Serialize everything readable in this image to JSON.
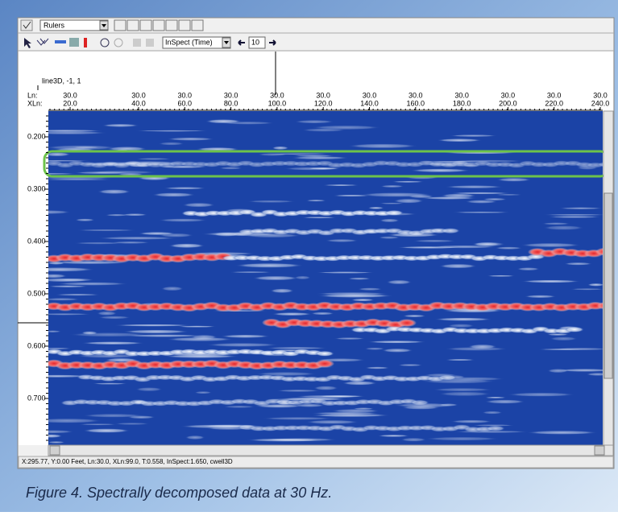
{
  "toolbar": {
    "layer_dropdown": "Rulers",
    "mode_dropdown": "InSpect (Time)",
    "step_value": "10"
  },
  "ruler": {
    "line_label": "line3D, -1, 1",
    "ln_label": "Ln:",
    "xln_label": "XLn:",
    "ticks": [
      {
        "ln": "30.0",
        "xln": "20.0"
      },
      {
        "ln": "30.0",
        "xln": "40.0"
      },
      {
        "ln": "30.0",
        "xln": "60.0"
      },
      {
        "ln": "30.0",
        "xln": "80.0"
      },
      {
        "ln": "30.0",
        "xln": "100.0"
      },
      {
        "ln": "30.0",
        "xln": "120.0"
      },
      {
        "ln": "30.0",
        "xln": "140.0"
      },
      {
        "ln": "30.0",
        "xln": "160.0"
      },
      {
        "ln": "30.0",
        "xln": "180.0"
      },
      {
        "ln": "30.0",
        "xln": "200.0"
      },
      {
        "ln": "30.0",
        "xln": "220.0"
      },
      {
        "ln": "30.0",
        "xln": "240.0"
      }
    ]
  },
  "time_axis": {
    "labels": [
      "0.200",
      "0.300",
      "0.400",
      "0.500",
      "0.600",
      "0.700"
    ]
  },
  "status_bar": "X:295.77, Y:0.00 Feet, Ln:30.0, XLn:99.0, T:0.558, InSpect:1.650, cwell3D",
  "caption": "Figure 4. Spectrally decomposed data at 30 Hz."
}
